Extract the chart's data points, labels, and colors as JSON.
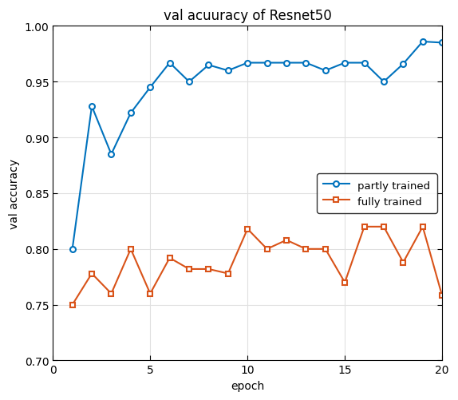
{
  "title": "val acuuracy of Resnet50",
  "xlabel": "epoch",
  "ylabel": "val accuracy",
  "xlim": [
    0,
    20
  ],
  "ylim": [
    0.7,
    1.0
  ],
  "yticks": [
    0.7,
    0.75,
    0.8,
    0.85,
    0.9,
    0.95,
    1.0
  ],
  "xticks": [
    0,
    5,
    10,
    15,
    20
  ],
  "partly_trained": {
    "x": [
      1,
      2,
      3,
      4,
      5,
      6,
      7,
      8,
      9,
      10,
      11,
      12,
      13,
      14,
      15,
      16,
      17,
      18,
      19,
      20
    ],
    "y": [
      0.8,
      0.928,
      0.885,
      0.922,
      0.945,
      0.967,
      0.95,
      0.965,
      0.96,
      0.967,
      0.967,
      0.967,
      0.967,
      0.96,
      0.967,
      0.967,
      0.95,
      0.966,
      0.986,
      0.985
    ],
    "color": "#0072BD",
    "marker": "o",
    "label": "partly trained"
  },
  "fully_trained": {
    "x": [
      1,
      2,
      3,
      4,
      5,
      6,
      7,
      8,
      9,
      10,
      11,
      12,
      13,
      14,
      15,
      16,
      17,
      18,
      19,
      20
    ],
    "y": [
      0.75,
      0.778,
      0.76,
      0.8,
      0.76,
      0.792,
      0.782,
      0.782,
      0.778,
      0.818,
      0.8,
      0.808,
      0.8,
      0.8,
      0.77,
      0.82,
      0.82,
      0.788,
      0.82,
      0.758
    ],
    "color": "#D95319",
    "marker": "s",
    "label": "fully trained"
  },
  "legend_loc": "center right",
  "background_color": "#ffffff",
  "title_fontsize": 12,
  "label_fontsize": 10,
  "tick_fontsize": 10,
  "grid_color": "#e0e0e0",
  "line_width": 1.5,
  "marker_size": 5
}
